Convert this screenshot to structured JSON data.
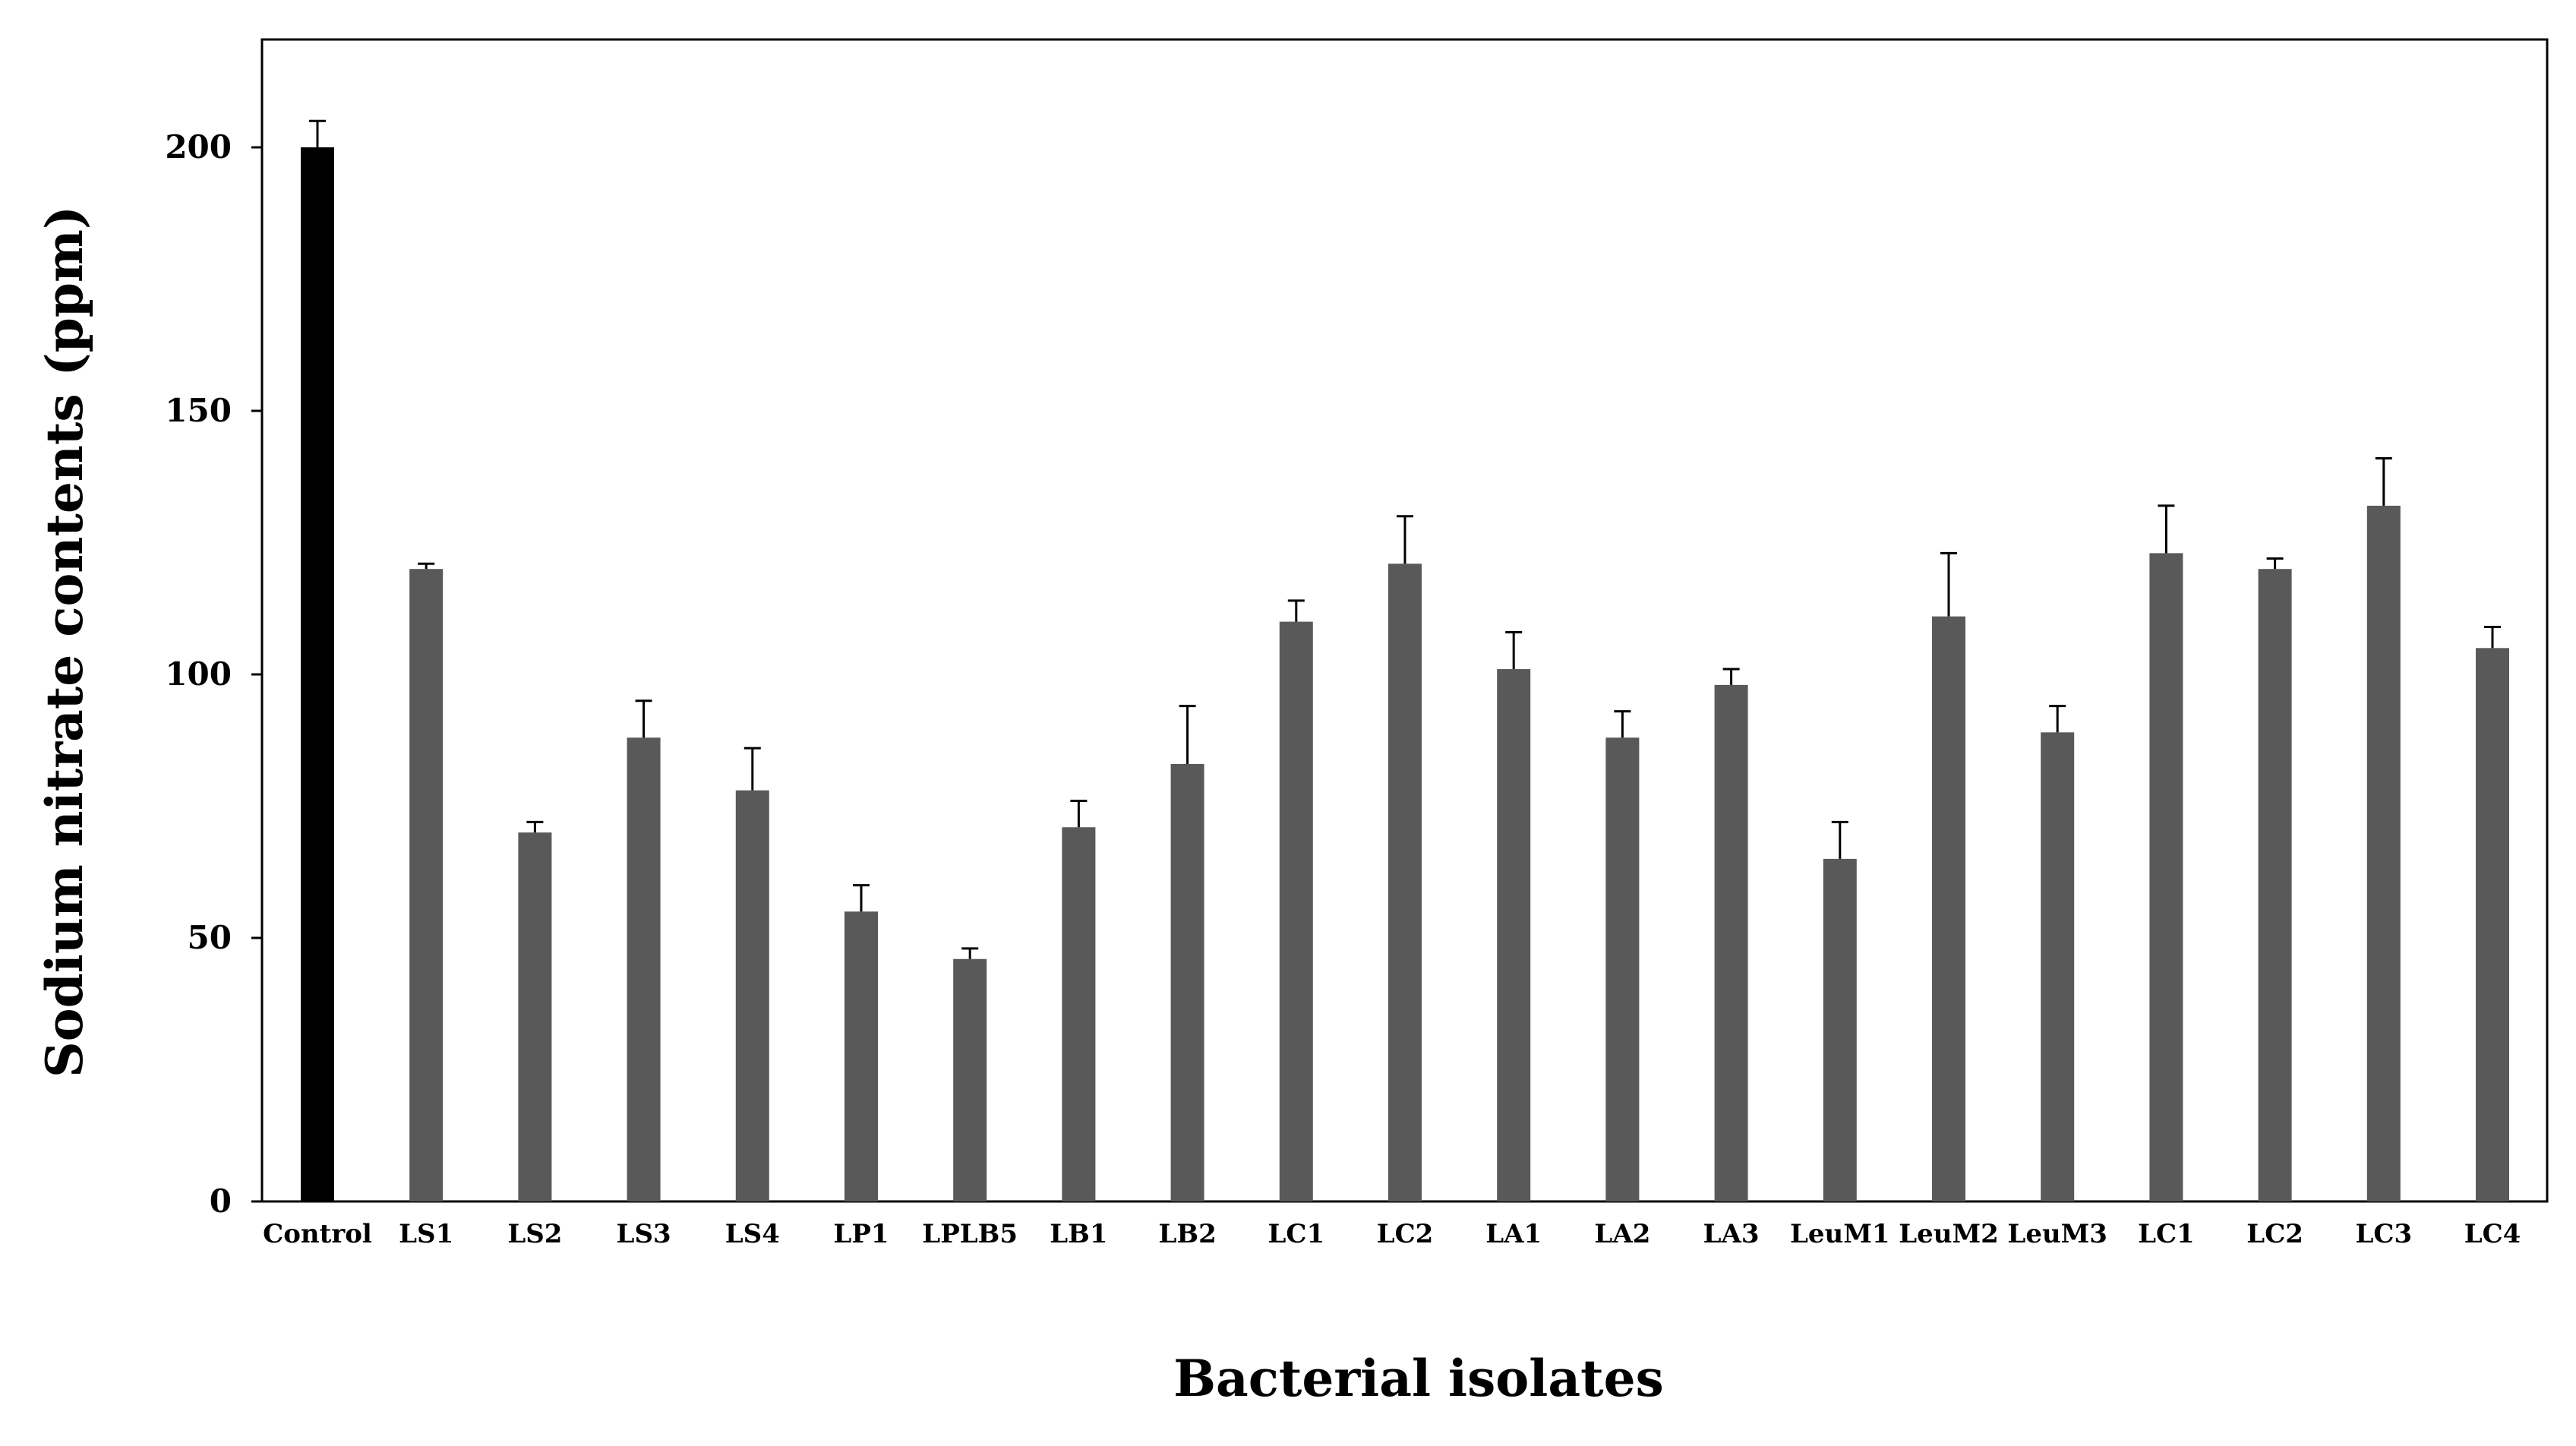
{
  "chart_data": {
    "type": "bar",
    "title": "",
    "xlabel": "Bacterial isolates",
    "ylabel": "Sodium nitrate contents (ppm)",
    "ylim": [
      0,
      220
    ],
    "yticks": [
      0,
      50,
      100,
      150,
      200
    ],
    "grid": false,
    "legend": "none",
    "categories": [
      "Control",
      "LS1",
      "LS2",
      "LS3",
      "LS4",
      "LP1",
      "LPLB5",
      "LB1",
      "LB2",
      "LC1",
      "LC2",
      "LA1",
      "LA2",
      "LA3",
      "LeuM1",
      "LeuM2",
      "LeuM3",
      "LC1",
      "LC2",
      "LC3",
      "LC4"
    ],
    "values": [
      200,
      120,
      70,
      88,
      78,
      55,
      46,
      71,
      83,
      110,
      121,
      101,
      88,
      98,
      65,
      111,
      89,
      123,
      120,
      132,
      105
    ],
    "errors": [
      5,
      1,
      2,
      7,
      8,
      5,
      2,
      5,
      11,
      4,
      9,
      7,
      5,
      3,
      7,
      12,
      5,
      9,
      2,
      9,
      4
    ],
    "colors": {
      "control": "#000000",
      "isolate": "#595959",
      "axis": "#000000",
      "error_bar": "#000000"
    }
  }
}
